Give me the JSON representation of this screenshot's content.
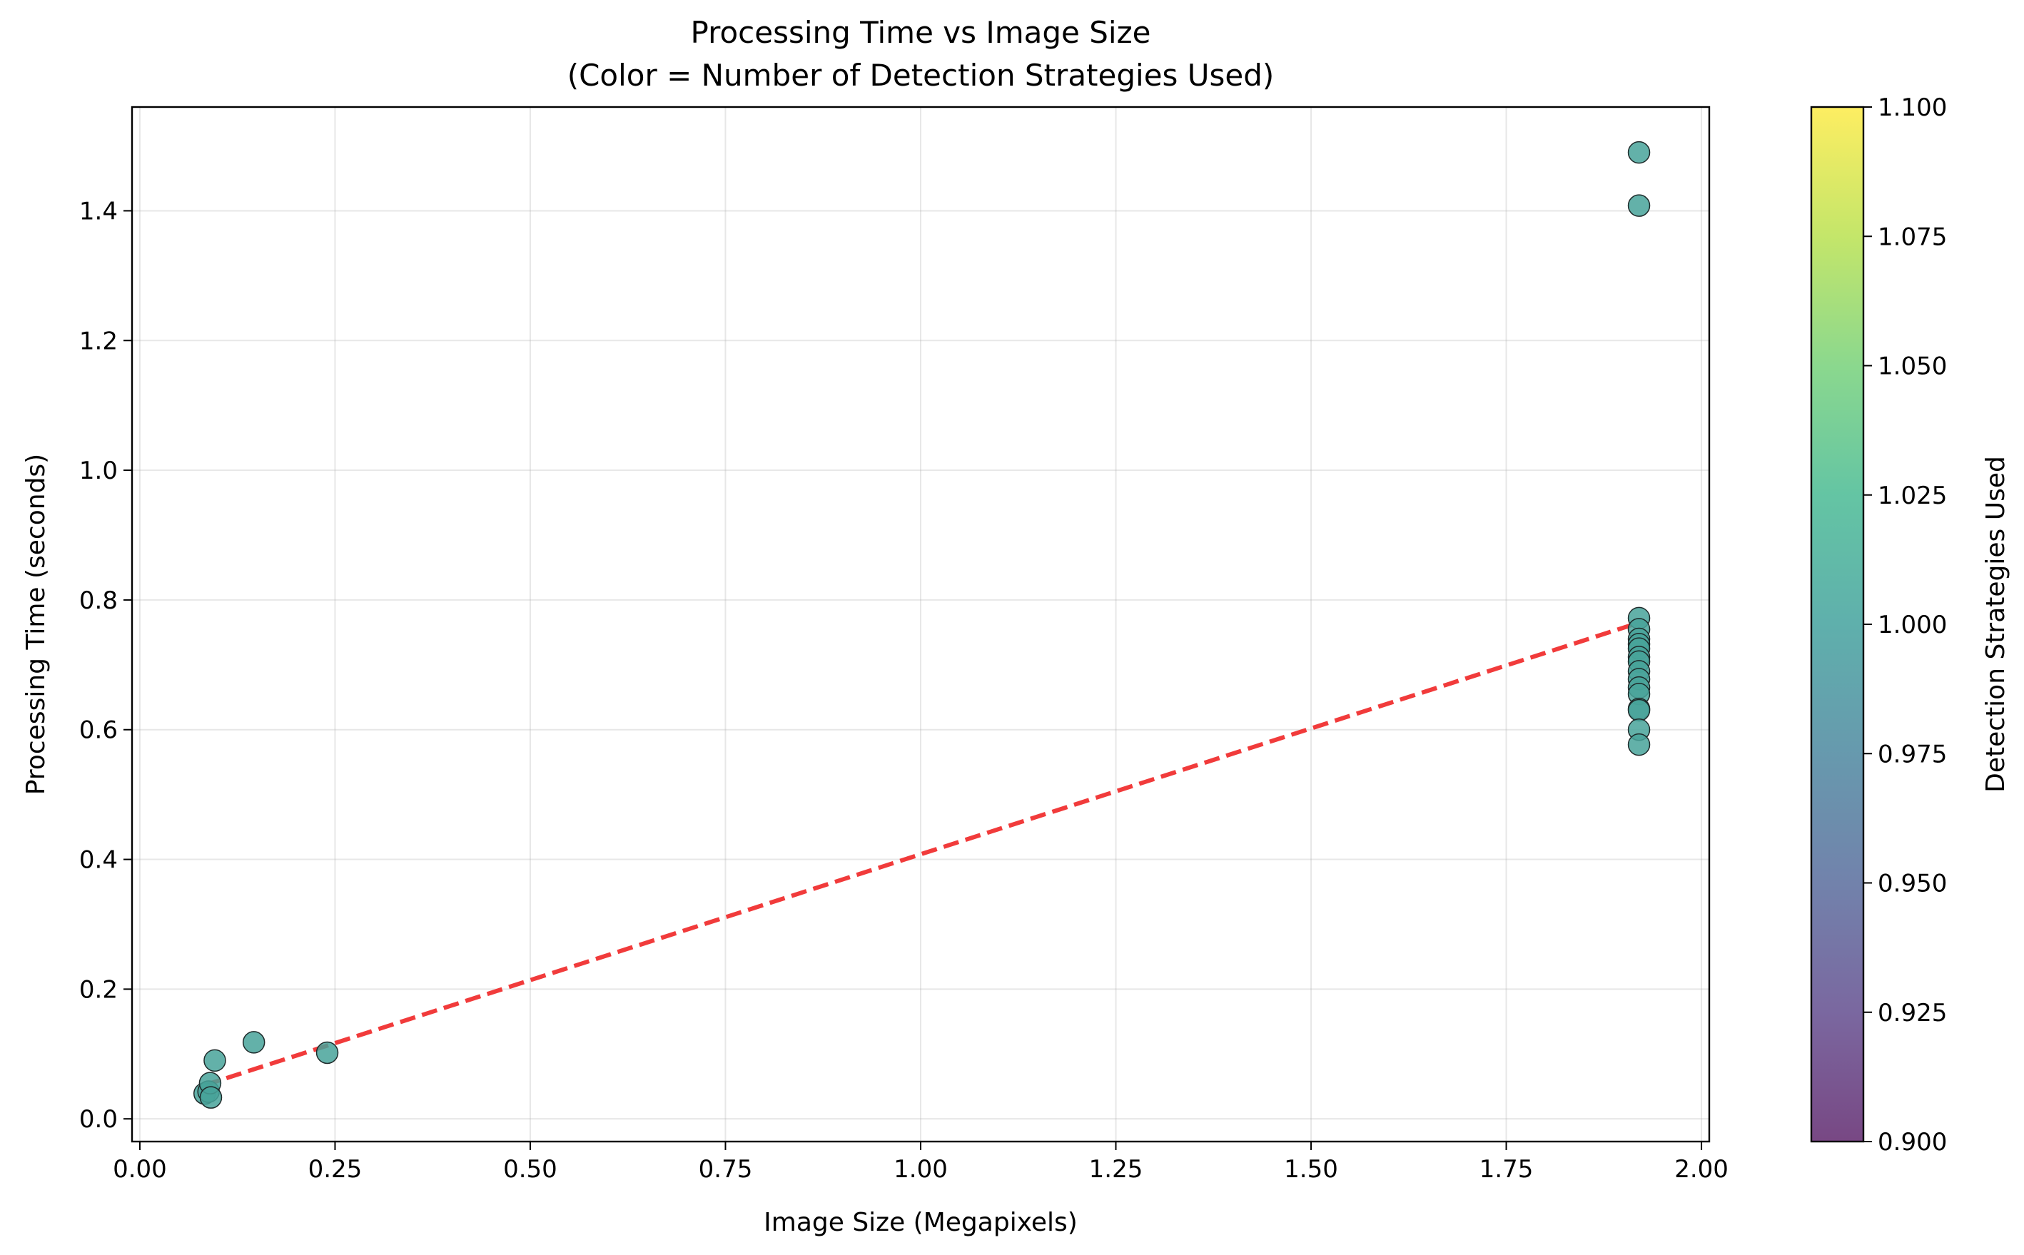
{
  "chart_data": {
    "type": "scatter",
    "title_line1": "Processing Time vs Image Size",
    "title_line2": "(Color = Number of Detection Strategies Used)",
    "xlabel": "Image Size (Megapixels)",
    "ylabel": "Processing Time (seconds)",
    "xlim": [
      -0.01,
      2.01
    ],
    "ylim": [
      -0.035,
      1.56
    ],
    "grid": true,
    "x_ticks": [
      0.0,
      0.25,
      0.5,
      0.75,
      1.0,
      1.25,
      1.5,
      1.75,
      2.0
    ],
    "x_tick_labels": [
      "0.00",
      "0.25",
      "0.50",
      "0.75",
      "1.00",
      "1.25",
      "1.50",
      "1.75",
      "2.00"
    ],
    "y_ticks": [
      0.0,
      0.2,
      0.4,
      0.6,
      0.8,
      1.0,
      1.2,
      1.4
    ],
    "y_tick_labels": [
      "0.0",
      "0.2",
      "0.4",
      "0.6",
      "0.8",
      "1.0",
      "1.2",
      "1.4"
    ],
    "point_color_value": 1.0,
    "point_fill": "#48a39a",
    "point_edge": "#1e2a2a",
    "points": [
      {
        "x": 0.083,
        "y": 0.039
      },
      {
        "x": 0.088,
        "y": 0.042
      },
      {
        "x": 0.09,
        "y": 0.055
      },
      {
        "x": 0.091,
        "y": 0.033
      },
      {
        "x": 0.096,
        "y": 0.09
      },
      {
        "x": 0.146,
        "y": 0.118
      },
      {
        "x": 0.24,
        "y": 0.102
      },
      {
        "x": 1.92,
        "y": 1.49
      },
      {
        "x": 1.92,
        "y": 1.408
      },
      {
        "x": 1.92,
        "y": 0.772
      },
      {
        "x": 1.92,
        "y": 0.755
      },
      {
        "x": 1.92,
        "y": 0.74
      },
      {
        "x": 1.92,
        "y": 0.732
      },
      {
        "x": 1.92,
        "y": 0.725
      },
      {
        "x": 1.92,
        "y": 0.712
      },
      {
        "x": 1.92,
        "y": 0.705
      },
      {
        "x": 1.92,
        "y": 0.69
      },
      {
        "x": 1.92,
        "y": 0.678
      },
      {
        "x": 1.92,
        "y": 0.665
      },
      {
        "x": 1.92,
        "y": 0.655
      },
      {
        "x": 1.92,
        "y": 0.632
      },
      {
        "x": 1.92,
        "y": 0.63
      },
      {
        "x": 1.92,
        "y": 0.6
      },
      {
        "x": 1.92,
        "y": 0.577
      }
    ],
    "trendline": {
      "x": [
        0.083,
        1.92
      ],
      "y": [
        0.052,
        0.765
      ],
      "color": "#f03030",
      "style": "dashed"
    },
    "colorbar": {
      "label": "Detection Strategies Used",
      "range": [
        0.9,
        1.1
      ],
      "ticks": [
        0.9,
        0.925,
        0.95,
        0.975,
        1.0,
        1.025,
        1.05,
        1.075,
        1.1
      ],
      "tick_labels": [
        "0.900",
        "0.925",
        "0.950",
        "0.975",
        "1.000",
        "1.025",
        "1.050",
        "1.075",
        "1.100"
      ],
      "colormap": "viridis"
    }
  }
}
